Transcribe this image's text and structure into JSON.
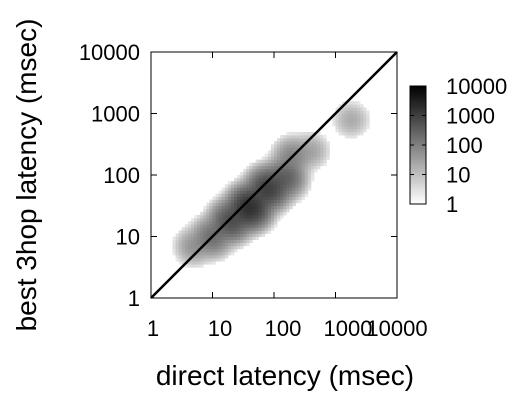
{
  "chart_data": {
    "type": "heatmap",
    "title": "",
    "xlabel": "direct latency (msec)",
    "ylabel": "best 3hop latency (msec)",
    "x_scale": "log",
    "y_scale": "log",
    "xlim": [
      1,
      10000
    ],
    "ylim": [
      1,
      10000
    ],
    "x_ticks": [
      "1",
      "10",
      "100",
      "1000",
      "10000"
    ],
    "y_ticks": [
      "1",
      "10",
      "100",
      "1000",
      "10000"
    ],
    "diagonal_line": {
      "from": [
        1,
        1
      ],
      "to": [
        10000,
        10000
      ],
      "color": "#000000"
    },
    "colorbar": {
      "scale": "log",
      "range": [
        1,
        10000
      ],
      "ticks": [
        "1",
        "10",
        "100",
        "1000",
        "10000"
      ],
      "gradient": [
        "#ffffff",
        "#000000"
      ]
    },
    "density_clusters": [
      {
        "x": 40,
        "y": 30,
        "peak_count": 3000
      },
      {
        "x": 80,
        "y": 60,
        "peak_count": 1500
      },
      {
        "x": 20,
        "y": 18,
        "peak_count": 800
      },
      {
        "x": 150,
        "y": 90,
        "peak_count": 400
      },
      {
        "x": 10,
        "y": 10,
        "peak_count": 200
      },
      {
        "x": 200,
        "y": 200,
        "peak_count": 80
      },
      {
        "x": 5,
        "y": 7,
        "peak_count": 40
      },
      {
        "x": 400,
        "y": 250,
        "peak_count": 20
      },
      {
        "x": 1800,
        "y": 800,
        "peak_count": 15
      }
    ]
  }
}
